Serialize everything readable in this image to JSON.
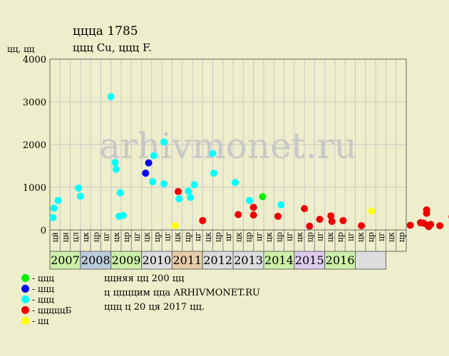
{
  "title": "ццца 1785",
  "subtitle": "ццц Cu, ццц F.",
  "unit_label": "цц, цц",
  "watermark": "arhivmonet.ru",
  "legend": [
    {
      "label": "- ццц",
      "color": "#00ee00"
    },
    {
      "label": "- ццц",
      "color": "#0000ee"
    },
    {
      "label": "- ццц",
      "color": "#00ffff"
    },
    {
      "label": "- цццццБ",
      "color": "#ee0000"
    },
    {
      "label": "- цц",
      "color": "#ffff00"
    }
  ],
  "info": [
    "ццняя цц 200 цц",
    "ц ццццим цца ARHIVMONET.RU",
    "ццц ц 20 ця 2017 цц."
  ],
  "chart_data": {
    "type": "scatter",
    "ylim": [
      0,
      4000
    ],
    "yticks": [
      0,
      1000,
      2000,
      3000,
      4000
    ],
    "grid": true,
    "month_labels": [
      "цй",
      "цн",
      "цл",
      "цк",
      "цр",
      "цг",
      "цк",
      "цр",
      "цг",
      "цк",
      "цр",
      "цг",
      "цк",
      "цр",
      "цг",
      "цк",
      "цр",
      "цг",
      "цк",
      "цр",
      "цг",
      "цк",
      "цр",
      "цг",
      "цк",
      "цр",
      "цг",
      "цк",
      "цр",
      "цг",
      "цк",
      "цр",
      "цг",
      "цк",
      "цр"
    ],
    "years": [
      {
        "label": "2007",
        "color": "#ccf0a8"
      },
      {
        "label": "2008",
        "color": "#bbccdd"
      },
      {
        "label": "2009",
        "color": "#ccf0a8"
      },
      {
        "label": "2010",
        "color": "#dddddd"
      },
      {
        "label": "2011",
        "color": "#e8ccaa"
      },
      {
        "label": "2012",
        "color": "#dddddd"
      },
      {
        "label": "2013",
        "color": "#dddddd"
      },
      {
        "label": "2014",
        "color": "#ccf0a8"
      },
      {
        "label": "2015",
        "color": "#ddccee"
      },
      {
        "label": "2016",
        "color": "#ccf0a8"
      },
      {
        "label": "",
        "color": "#dddddd"
      }
    ],
    "series": [
      {
        "color": "#00ee00",
        "points": [
          [
            20.9,
            780
          ]
        ]
      },
      {
        "color": "#0000ee",
        "points": [
          [
            9.4,
            1330
          ],
          [
            9.7,
            1570
          ]
        ]
      },
      {
        "color": "#00ffff",
        "points": [
          [
            0.3,
            290
          ],
          [
            0.4,
            510
          ],
          [
            0.8,
            690
          ],
          [
            2.8,
            980
          ],
          [
            3.0,
            790
          ],
          [
            6.0,
            3120
          ],
          [
            6.4,
            1580
          ],
          [
            6.5,
            1420
          ],
          [
            6.8,
            320
          ],
          [
            6.9,
            870
          ],
          [
            7.2,
            340
          ],
          [
            10.1,
            1130
          ],
          [
            10.2,
            1740
          ],
          [
            11.2,
            2060
          ],
          [
            11.2,
            1080
          ],
          [
            12.7,
            730
          ],
          [
            13.6,
            910
          ],
          [
            13.8,
            760
          ],
          [
            14.2,
            1060
          ],
          [
            16.0,
            1790
          ],
          [
            16.1,
            1330
          ],
          [
            18.2,
            1110
          ],
          [
            19.6,
            690
          ],
          [
            22.7,
            590
          ]
        ]
      },
      {
        "color": "#ee0000",
        "points": [
          [
            12.6,
            900
          ],
          [
            15.0,
            220
          ],
          [
            18.5,
            360
          ],
          [
            20.0,
            530
          ],
          [
            20.0,
            350
          ],
          [
            22.4,
            320
          ],
          [
            25.0,
            500
          ],
          [
            25.5,
            90
          ],
          [
            26.5,
            250
          ],
          [
            27.6,
            330
          ],
          [
            27.7,
            200
          ],
          [
            28.8,
            220
          ],
          [
            30.6,
            100
          ],
          [
            35.4,
            110
          ],
          [
            36.4,
            170
          ],
          [
            36.7,
            160
          ],
          [
            37.0,
            470
          ],
          [
            37.0,
            390
          ],
          [
            37.1,
            110
          ],
          [
            37.2,
            80
          ],
          [
            37.4,
            130
          ],
          [
            38.3,
            100
          ],
          [
            39.5,
            310
          ]
        ]
      },
      {
        "color": "#ffff00",
        "points": [
          [
            12.3,
            100
          ],
          [
            31.6,
            440
          ]
        ]
      }
    ]
  }
}
